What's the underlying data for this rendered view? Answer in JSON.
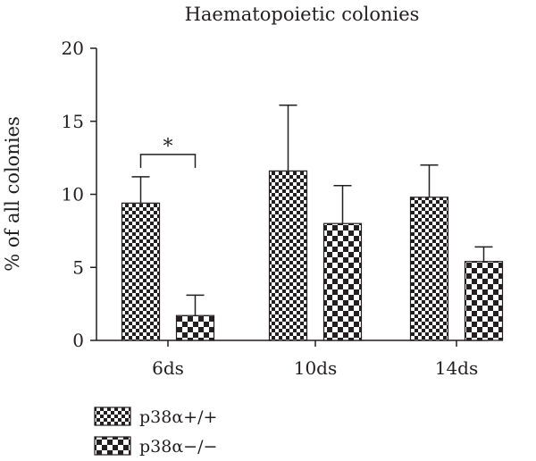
{
  "chart_data": {
    "type": "bar",
    "title": "Haematopoietic colonies",
    "xlabel": "",
    "ylabel": "% of all colonies",
    "ylim": [
      0,
      20
    ],
    "yticks": [
      0,
      5,
      10,
      15,
      20
    ],
    "categories": [
      "6ds",
      "10ds",
      "14ds"
    ],
    "series": [
      {
        "name": "p38α+/+",
        "values": [
          9.4,
          11.6,
          9.8
        ],
        "error": [
          1.8,
          4.5,
          2.2
        ],
        "pattern": "fine-checker"
      },
      {
        "name": "p38α−/−",
        "values": [
          1.7,
          8.0,
          5.4
        ],
        "error": [
          1.4,
          2.6,
          1.0
        ],
        "pattern": "coarse-checker"
      }
    ],
    "annotations": [
      {
        "text": "*",
        "category": "6ds",
        "between_series": [
          0,
          1
        ]
      }
    ],
    "grid": false,
    "legend_position": "bottom-left"
  }
}
